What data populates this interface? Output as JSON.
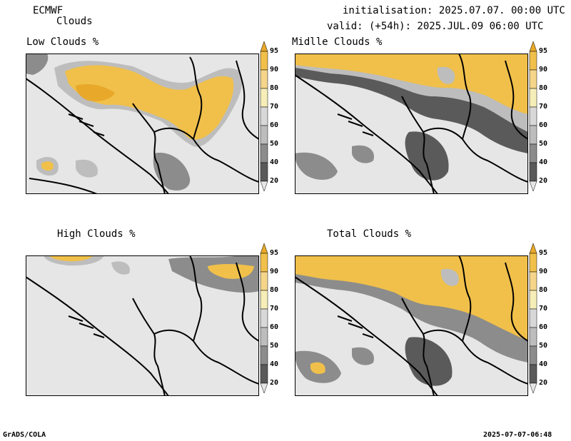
{
  "header": {
    "model": "ECMWF",
    "product": "Clouds",
    "init_line": "initialisation: 2025.07.07. 00:00 UTC",
    "valid_line": "valid: (+54h): 2025.JUL.09 06:00 UTC"
  },
  "panels": [
    {
      "id": "low",
      "title": "Low Clouds %"
    },
    {
      "id": "middle",
      "title": "Midlle Clouds %"
    },
    {
      "id": "high",
      "title": "High Clouds %"
    },
    {
      "id": "total",
      "title": "Total Clouds %"
    }
  ],
  "colorbar": {
    "levels": [
      "95",
      "90",
      "80",
      "70",
      "60",
      "50",
      "40",
      "20"
    ],
    "colors": [
      "#e8a82a",
      "#f0c04a",
      "#f4d58a",
      "#f6eeb8",
      "#d8d8d8",
      "#bdbdbd",
      "#8c8c8c",
      "#5a5a5a",
      "#e6e6e6"
    ]
  },
  "footer": {
    "left": "GrADS/COLA",
    "right": "2025-07-07-06:48"
  }
}
